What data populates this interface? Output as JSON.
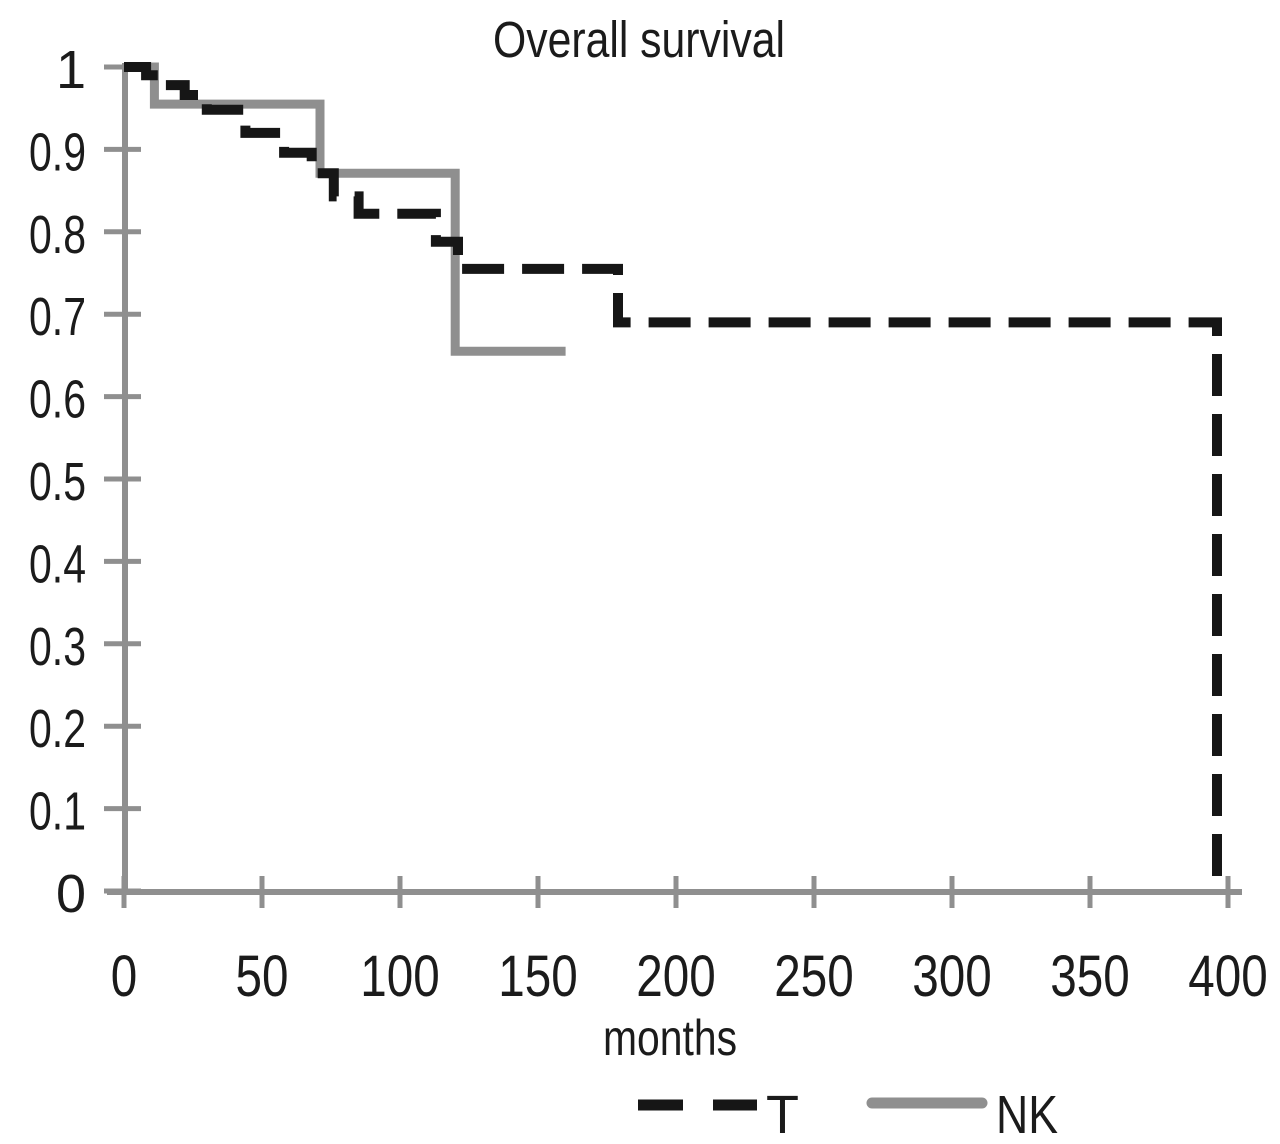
{
  "chart_data": {
    "type": "line",
    "subtype": "kaplan-meier-step",
    "title": "Overall survival",
    "xlabel": "months",
    "ylabel": "",
    "xlim": [
      0,
      400
    ],
    "ylim": [
      0,
      1
    ],
    "grid": false,
    "legend_position": "bottom-right",
    "axis_color": "#8f8f8f",
    "xticks": [
      0,
      50,
      100,
      150,
      200,
      250,
      300,
      350,
      400
    ],
    "xtick_labels": [
      "0",
      "50",
      "100",
      "150",
      "200",
      "250",
      "300",
      "350",
      "400"
    ],
    "yticks": [
      0,
      0.1,
      0.2,
      0.3,
      0.4,
      0.5,
      0.6,
      0.7,
      0.8,
      0.9,
      1
    ],
    "ytick_labels": [
      "0",
      "0.1",
      "0.2",
      "0.3",
      "0.4",
      "0.5",
      "0.6",
      "0.7",
      "0.8",
      "0.9",
      "1"
    ],
    "series": [
      {
        "name": "T",
        "style": "dashed",
        "color": "#161616",
        "points": [
          [
            0,
            1.0
          ],
          [
            8,
            0.99
          ],
          [
            15,
            0.978
          ],
          [
            22,
            0.966
          ],
          [
            30,
            0.948
          ],
          [
            44,
            0.92
          ],
          [
            58,
            0.896
          ],
          [
            68,
            0.871
          ],
          [
            76,
            0.843
          ],
          [
            85,
            0.822
          ],
          [
            113,
            0.788
          ],
          [
            121,
            0.755
          ],
          [
            179,
            0.69
          ],
          [
            396,
            0.0
          ]
        ],
        "end_time": 396
      },
      {
        "name": "NK",
        "style": "solid",
        "color": "#8f8f8f",
        "points": [
          [
            0,
            1.0
          ],
          [
            11,
            0.955
          ],
          [
            71,
            0.871
          ],
          [
            120,
            0.655
          ]
        ],
        "end_time": 160
      }
    ]
  }
}
